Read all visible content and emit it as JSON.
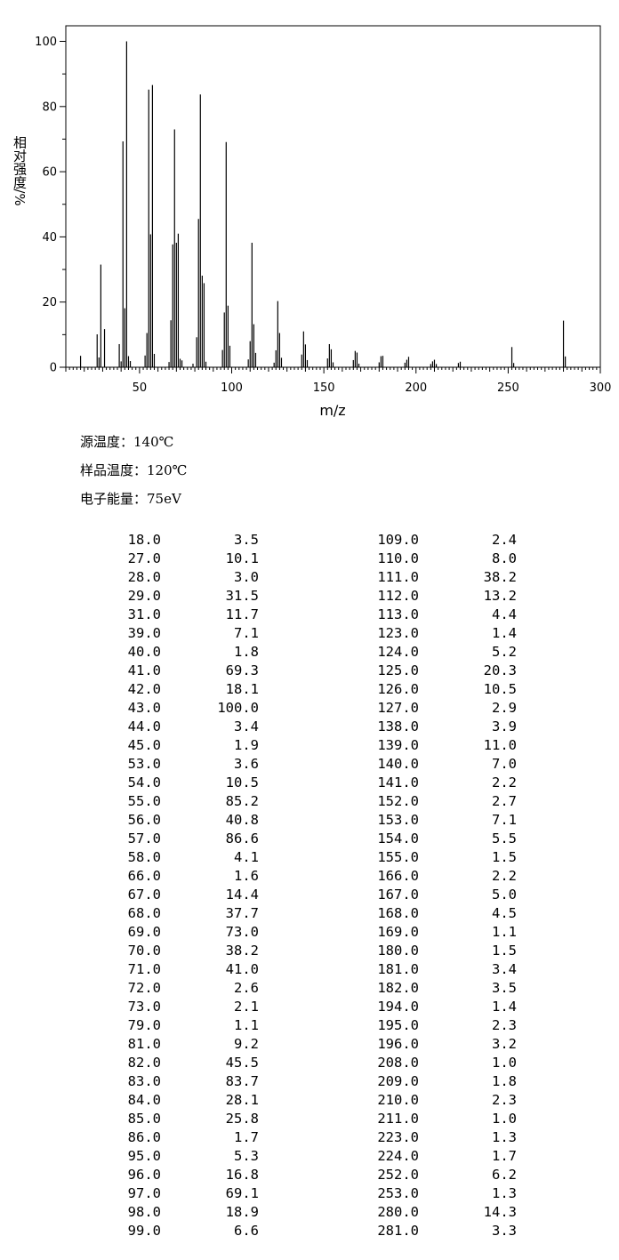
{
  "chart_data": {
    "type": "bar",
    "xlabel": "m/z",
    "ylabel": "相对强度/%",
    "xlim": [
      10,
      300
    ],
    "ylim": [
      0,
      100
    ],
    "x_ticks": [
      50,
      100,
      150,
      200,
      250,
      300
    ],
    "y_ticks": [
      0,
      20,
      40,
      60,
      80,
      100
    ],
    "grid": false,
    "mz": [
      18,
      27,
      28,
      29,
      31,
      39,
      40,
      41,
      42,
      43,
      44,
      45,
      53,
      54,
      55,
      56,
      57,
      58,
      66,
      67,
      68,
      69,
      70,
      71,
      72,
      73,
      79,
      81,
      82,
      83,
      84,
      85,
      86,
      95,
      96,
      97,
      98,
      99,
      109,
      110,
      111,
      112,
      113,
      123,
      124,
      125,
      126,
      127,
      138,
      139,
      140,
      141,
      152,
      153,
      154,
      155,
      166,
      167,
      168,
      169,
      180,
      181,
      182,
      194,
      195,
      196,
      208,
      209,
      210,
      211,
      223,
      224,
      252,
      253,
      280,
      281
    ],
    "intensity": [
      3.5,
      10.1,
      3.0,
      31.5,
      11.7,
      7.1,
      1.8,
      69.3,
      18.1,
      100.0,
      3.4,
      1.9,
      3.6,
      10.5,
      85.2,
      40.8,
      86.6,
      4.1,
      1.6,
      14.4,
      37.7,
      73.0,
      38.2,
      41.0,
      2.6,
      2.1,
      1.1,
      9.2,
      45.5,
      83.7,
      28.1,
      25.8,
      1.7,
      5.3,
      16.8,
      69.1,
      18.9,
      6.6,
      2.4,
      8.0,
      38.2,
      13.2,
      4.4,
      1.4,
      5.2,
      20.3,
      10.5,
      2.9,
      3.9,
      11.0,
      7.0,
      2.2,
      2.7,
      7.1,
      5.5,
      1.5,
      2.2,
      5.0,
      4.5,
      1.1,
      1.5,
      3.4,
      3.5,
      1.4,
      2.3,
      3.2,
      1.0,
      1.8,
      2.3,
      1.0,
      1.3,
      1.7,
      6.2,
      1.3,
      14.3,
      3.3
    ]
  },
  "conditions": {
    "source_temp": "源温度：140℃",
    "sample_temp": "样品温度：120℃",
    "electron_energy": "电子能量：75eV"
  },
  "peak_table": {
    "left": [
      [
        "18.0",
        "3.5"
      ],
      [
        "27.0",
        "10.1"
      ],
      [
        "28.0",
        "3.0"
      ],
      [
        "29.0",
        "31.5"
      ],
      [
        "31.0",
        "11.7"
      ],
      [
        "39.0",
        "7.1"
      ],
      [
        "40.0",
        "1.8"
      ],
      [
        "41.0",
        "69.3"
      ],
      [
        "42.0",
        "18.1"
      ],
      [
        "43.0",
        "100.0"
      ],
      [
        "44.0",
        "3.4"
      ],
      [
        "45.0",
        "1.9"
      ],
      [
        "53.0",
        "3.6"
      ],
      [
        "54.0",
        "10.5"
      ],
      [
        "55.0",
        "85.2"
      ],
      [
        "56.0",
        "40.8"
      ],
      [
        "57.0",
        "86.6"
      ],
      [
        "58.0",
        "4.1"
      ],
      [
        "66.0",
        "1.6"
      ],
      [
        "67.0",
        "14.4"
      ],
      [
        "68.0",
        "37.7"
      ],
      [
        "69.0",
        "73.0"
      ],
      [
        "70.0",
        "38.2"
      ],
      [
        "71.0",
        "41.0"
      ],
      [
        "72.0",
        "2.6"
      ],
      [
        "73.0",
        "2.1"
      ],
      [
        "79.0",
        "1.1"
      ],
      [
        "81.0",
        "9.2"
      ],
      [
        "82.0",
        "45.5"
      ],
      [
        "83.0",
        "83.7"
      ],
      [
        "84.0",
        "28.1"
      ],
      [
        "85.0",
        "25.8"
      ],
      [
        "86.0",
        "1.7"
      ],
      [
        "95.0",
        "5.3"
      ],
      [
        "96.0",
        "16.8"
      ],
      [
        "97.0",
        "69.1"
      ],
      [
        "98.0",
        "18.9"
      ],
      [
        "99.0",
        "6.6"
      ]
    ],
    "right": [
      [
        "109.0",
        "2.4"
      ],
      [
        "110.0",
        "8.0"
      ],
      [
        "111.0",
        "38.2"
      ],
      [
        "112.0",
        "13.2"
      ],
      [
        "113.0",
        "4.4"
      ],
      [
        "123.0",
        "1.4"
      ],
      [
        "124.0",
        "5.2"
      ],
      [
        "125.0",
        "20.3"
      ],
      [
        "126.0",
        "10.5"
      ],
      [
        "127.0",
        "2.9"
      ],
      [
        "138.0",
        "3.9"
      ],
      [
        "139.0",
        "11.0"
      ],
      [
        "140.0",
        "7.0"
      ],
      [
        "141.0",
        "2.2"
      ],
      [
        "152.0",
        "2.7"
      ],
      [
        "153.0",
        "7.1"
      ],
      [
        "154.0",
        "5.5"
      ],
      [
        "155.0",
        "1.5"
      ],
      [
        "166.0",
        "2.2"
      ],
      [
        "167.0",
        "5.0"
      ],
      [
        "168.0",
        "4.5"
      ],
      [
        "169.0",
        "1.1"
      ],
      [
        "180.0",
        "1.5"
      ],
      [
        "181.0",
        "3.4"
      ],
      [
        "182.0",
        "3.5"
      ],
      [
        "194.0",
        "1.4"
      ],
      [
        "195.0",
        "2.3"
      ],
      [
        "196.0",
        "3.2"
      ],
      [
        "208.0",
        "1.0"
      ],
      [
        "209.0",
        "1.8"
      ],
      [
        "210.0",
        "2.3"
      ],
      [
        "211.0",
        "1.0"
      ],
      [
        "223.0",
        "1.3"
      ],
      [
        "224.0",
        "1.7"
      ],
      [
        "252.0",
        "6.2"
      ],
      [
        "253.0",
        "1.3"
      ],
      [
        "280.0",
        "14.3"
      ],
      [
        "281.0",
        "3.3"
      ]
    ]
  }
}
